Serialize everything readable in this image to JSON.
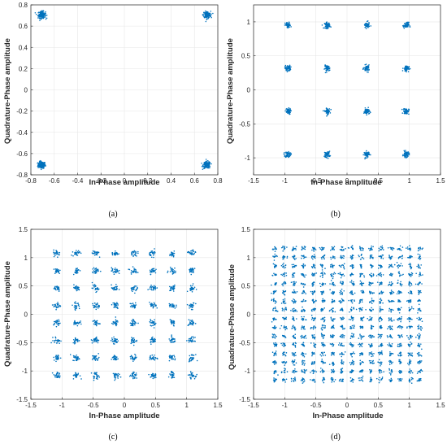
{
  "chart_data": [
    {
      "type": "scatter",
      "caption": "(a)",
      "xlabel": "In-Phase amplitude",
      "ylabel": "Quadrature-Phase amplitude",
      "xlim": [
        -0.8,
        0.8
      ],
      "ylim": [
        -0.8,
        0.8
      ],
      "xticks": [
        "-0.8",
        "-0.6",
        "-0.4",
        "-0.2",
        "0",
        "0.2",
        "0.4",
        "0.6",
        "0.8"
      ],
      "yticks": [
        "-0.8",
        "-0.6",
        "-0.4",
        "-0.2",
        "0",
        "0.2",
        "0.4",
        "0.6",
        "0.8"
      ],
      "grid": true,
      "color": "#0072BD",
      "constellation_levels": [
        -0.707,
        0.707
      ],
      "cluster_spread": 0.016
    },
    {
      "type": "scatter",
      "caption": "(b)",
      "xlabel": "In-Phase amplitude",
      "ylabel": "Quadrature-Phase amplitude",
      "xlim": [
        -1.5,
        1.5
      ],
      "ylim": [
        -1.25,
        1.25
      ],
      "xticks": [
        "-1.5",
        "-1",
        "-0.5",
        "0",
        "0.5",
        "1",
        "1.5"
      ],
      "yticks": [
        "-1",
        "-0.5",
        "0",
        "0.5",
        "1"
      ],
      "grid": true,
      "color": "#0072BD",
      "constellation_levels": [
        -0.949,
        -0.316,
        0.316,
        0.949
      ],
      "cluster_spread": 0.022
    },
    {
      "type": "scatter",
      "caption": "(c)",
      "xlabel": "In-Phase amplitude",
      "ylabel": "Quadrature-Phase amplitude",
      "xlim": [
        -1.5,
        1.5
      ],
      "ylim": [
        -1.5,
        1.5
      ],
      "xticks": [
        "-1.5",
        "-1",
        "-0.5",
        "0",
        "0.5",
        "1",
        "1.5"
      ],
      "yticks": [
        "-1.5",
        "-1",
        "-0.5",
        "0",
        "0.5",
        "1",
        "1.5"
      ],
      "grid": true,
      "color": "#0072BD",
      "constellation_levels": [
        -1.08,
        -0.77,
        -0.46,
        -0.15,
        0.15,
        0.46,
        0.77,
        1.08
      ],
      "cluster_spread": 0.028
    },
    {
      "type": "scatter",
      "caption": "(d)",
      "xlabel": "In-Phase amplitude",
      "ylabel": "Quadrature-Phase amplitude",
      "xlim": [
        -1.5,
        1.5
      ],
      "ylim": [
        -1.5,
        1.5
      ],
      "xticks": [
        "-1.5",
        "-1",
        "-0.5",
        "0",
        "0.5",
        "1",
        "1.5"
      ],
      "yticks": [
        "-1.5",
        "-1",
        "-0.5",
        "0",
        "0.5",
        "1",
        "1.5"
      ],
      "grid": true,
      "color": "#0072BD",
      "constellation_levels": [
        -1.16,
        -1.01,
        -0.85,
        -0.7,
        -0.54,
        -0.39,
        -0.23,
        -0.08,
        0.08,
        0.23,
        0.39,
        0.54,
        0.7,
        0.85,
        1.01,
        1.16
      ],
      "cluster_spread": 0.02
    }
  ]
}
